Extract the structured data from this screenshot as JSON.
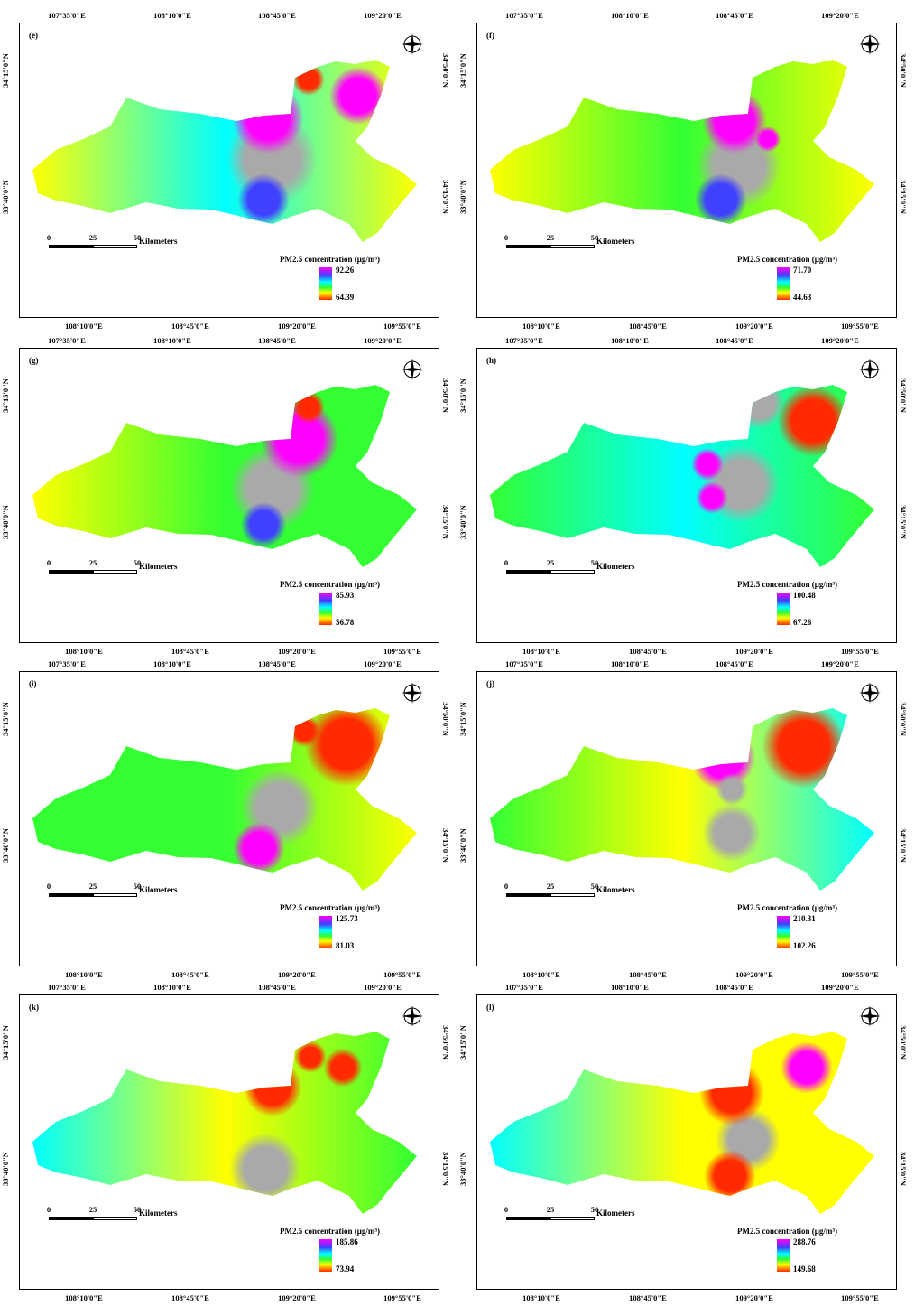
{
  "top_axis_labels": [
    "107°35'0\"E",
    "108°10'0\"E",
    "108°45'0\"E",
    "109°20'0\"E"
  ],
  "bottom_axis_labels": [
    "108°10'0\"E",
    "108°45'0\"E",
    "109°20'0\"E",
    "109°55'0\"E"
  ],
  "left_axis_labels": [
    "34°15'0\"N",
    "33°40'0\"N"
  ],
  "right_axis_labels": [
    "34°50'0\"N",
    "34°15'0\"N"
  ],
  "compass_letters": {
    "n": "N",
    "s": "S",
    "e": "E",
    "w": "W"
  },
  "scalebar": {
    "zero": "0",
    "mid": "25",
    "end": "50",
    "unit": "Kilometers"
  },
  "legend_title": "PM2.5 concentration (μg/m³)",
  "colors": {
    "max": "#ff00ff",
    "high": "#4040ff",
    "mid_high": "#00ffff",
    "mid": "#33ff33",
    "mid_low": "#ffff00",
    "low": "#ff2a00",
    "urban_core": "#a9a9a9"
  },
  "panels": [
    {
      "label": "(e)",
      "max": "92.26",
      "min": "64.39"
    },
    {
      "label": "(f)",
      "max": "71.70",
      "min": "44.63"
    },
    {
      "label": "(g)",
      "max": "85.93",
      "min": "56.78"
    },
    {
      "label": "(h)",
      "max": "100.48",
      "min": "67.26"
    },
    {
      "label": "(i)",
      "max": "125.73",
      "min": "81.03"
    },
    {
      "label": "(j)",
      "max": "210.31",
      "min": "102.26"
    },
    {
      "label": "(k)",
      "max": "185.86",
      "min": "73.94"
    },
    {
      "label": "(l)",
      "max": "288.76",
      "min": "149.68"
    }
  ]
}
